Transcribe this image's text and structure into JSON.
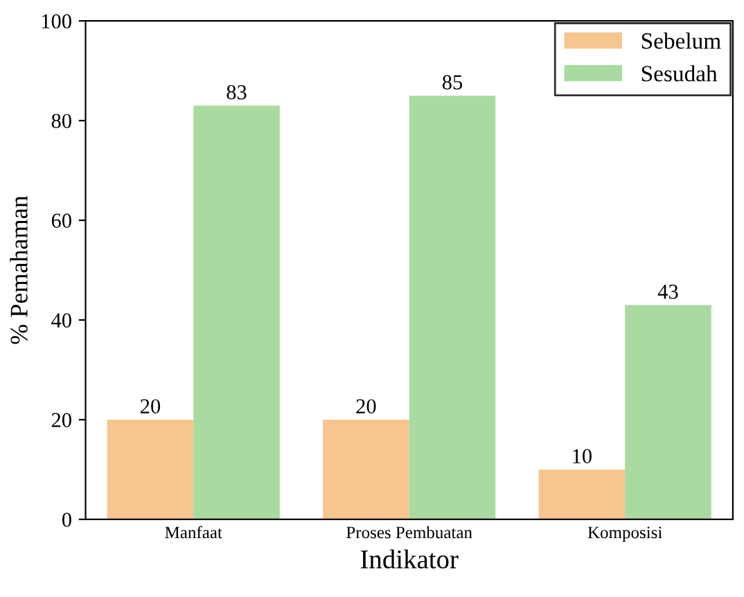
{
  "chart_data": {
    "type": "bar",
    "xlabel": "Indikator",
    "ylabel": "% Pemahaman",
    "categories": [
      "Manfaat",
      "Proses Pembuatan",
      "Komposisi"
    ],
    "series": [
      {
        "name": "Sebelum",
        "color": "#f7c58f",
        "values": [
          20,
          20,
          10
        ]
      },
      {
        "name": "Sesudah",
        "color": "#a9dba0",
        "values": [
          83,
          85,
          43
        ]
      }
    ],
    "ylim": [
      0,
      100
    ],
    "yticks": [
      0,
      20,
      40,
      60,
      80,
      100
    ],
    "grid": false,
    "legend": "top right",
    "data_labels": true
  }
}
